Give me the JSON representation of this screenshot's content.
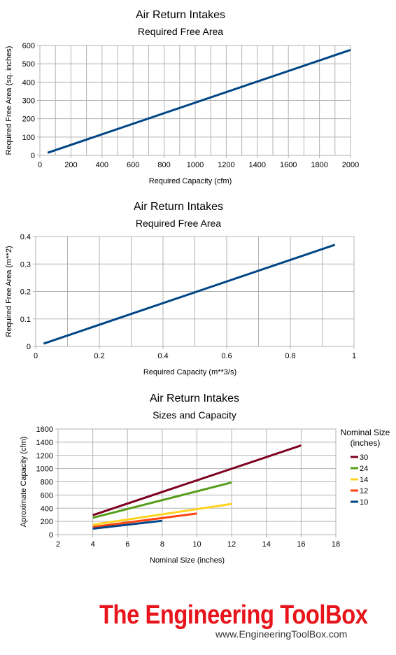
{
  "chart_data": [
    {
      "type": "line",
      "title": "Air Return Intakes",
      "subtitle": "Required Free Area",
      "xlabel": "Required Capacity (cfm)",
      "ylabel": "Required Free Area (sq. inches)",
      "xlim": [
        0,
        2000
      ],
      "ylim": [
        0,
        600
      ],
      "xticks": [
        0,
        200,
        400,
        600,
        800,
        1000,
        1200,
        1400,
        1600,
        1800,
        2000
      ],
      "yticks": [
        0,
        100,
        200,
        300,
        400,
        500,
        600
      ],
      "grid": true,
      "series": [
        {
          "color": "#004586",
          "x": [
            50,
            2000
          ],
          "y": [
            14,
            576
          ]
        }
      ]
    },
    {
      "type": "line",
      "title": "Air Return Intakes",
      "subtitle": "Required Free Area",
      "xlabel": "Required Capacity (m**3/s)",
      "ylabel": "Required Free Area (m**2)",
      "xlim": [
        0,
        1
      ],
      "ylim": [
        0,
        0.4
      ],
      "xticks": [
        "0",
        "0.2",
        "0.4",
        "0.6",
        "0.8",
        "1"
      ],
      "yticks": [
        "0",
        "0.1",
        "0.2",
        "0.3",
        "0.4"
      ],
      "grid": true,
      "series": [
        {
          "color": "#004586",
          "x": [
            0.025,
            0.94
          ],
          "y": [
            0.01,
            0.37
          ]
        }
      ]
    },
    {
      "type": "line",
      "title": "Air Return Intakes",
      "subtitle": "Sizes and Capacity",
      "xlabel": "Nominal Size (inches)",
      "ylabel": "Aproximate Capacity (cfm)",
      "xlim": [
        2,
        18
      ],
      "ylim": [
        0,
        1600
      ],
      "xticks": [
        2,
        4,
        6,
        8,
        10,
        12,
        14,
        16,
        18
      ],
      "yticks": [
        0,
        200,
        400,
        600,
        800,
        1000,
        1200,
        1400,
        1600
      ],
      "grid": true,
      "legend_title": "Nominal Size\n(inches)",
      "legend_position": "right",
      "series": [
        {
          "name": "30",
          "color": "#7e0021",
          "x": [
            4,
            16
          ],
          "y": [
            295,
            1350
          ]
        },
        {
          "name": "24",
          "color": "#579d1c",
          "x": [
            4,
            12
          ],
          "y": [
            255,
            790
          ]
        },
        {
          "name": "14",
          "color": "#ffd320",
          "x": [
            4,
            12
          ],
          "y": [
            150,
            465
          ]
        },
        {
          "name": "12",
          "color": "#ff420e",
          "x": [
            4,
            10
          ],
          "y": [
            115,
            320
          ]
        },
        {
          "name": "10",
          "color": "#004586",
          "x": [
            4,
            8
          ],
          "y": [
            90,
            210
          ]
        }
      ]
    }
  ],
  "branding": {
    "name": "The Engineering ToolBox",
    "url": "www.EngineeringToolBox.com",
    "color": "#e8141b"
  }
}
